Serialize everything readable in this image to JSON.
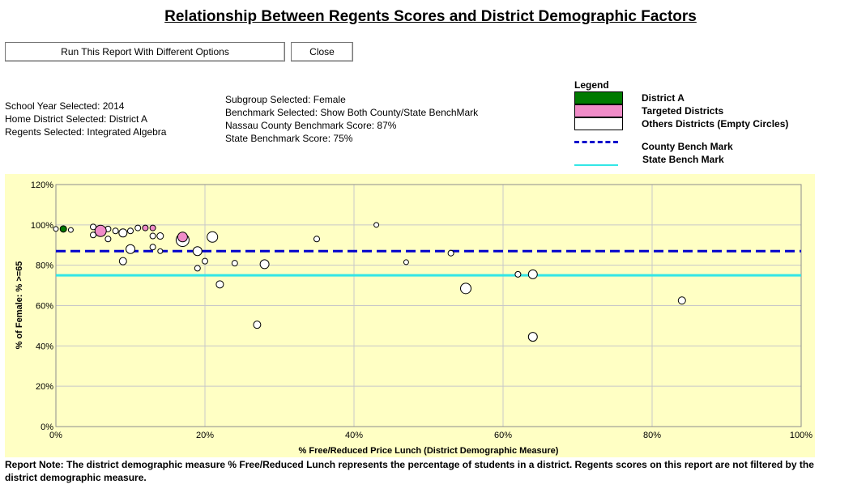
{
  "page": {
    "title": "Relationship Between Regents Scores and District Demographic Factors",
    "run_button": "Run This Report With Different Options",
    "close_button": "Close"
  },
  "info": {
    "school_year": "School Year Selected:  2014",
    "home_district": "Home District Selected: District A",
    "regents": "Regents Selected: Integrated Algebra",
    "subgroup": "Subgroup Selected: Female",
    "benchmark": "Benchmark Selected: Show Both County/State BenchMark",
    "county_score": "Nassau County Benchmark Score: 87%",
    "state_score": "State Benchmark Score: 75%"
  },
  "legend": {
    "title": "Legend",
    "district_a": "District A",
    "targeted": "Targeted Districts",
    "others": "Others Districts (Empty Circles)",
    "county": "County Bench Mark",
    "state": "State Bench Mark"
  },
  "colors": {
    "district_a": "#007a00",
    "targeted": "#f08cc8",
    "county_line": "#0000cc",
    "state_line": "#33e6e6",
    "plot_bg": "#ffffc4"
  },
  "chart_data": {
    "type": "scatter",
    "xlabel": "% Free/Reduced Price Lunch (District Demographic Measure)",
    "ylabel": "% of Female:   % >=65",
    "xlim": [
      0,
      100
    ],
    "ylim": [
      0,
      120
    ],
    "x_ticks": [
      "0%",
      "20%",
      "40%",
      "60%",
      "80%",
      "100%"
    ],
    "y_ticks": [
      "0%",
      "20%",
      "40%",
      "60%",
      "80%",
      "100%",
      "120%"
    ],
    "x_tick_values": [
      0,
      20,
      40,
      60,
      80,
      100
    ],
    "y_tick_values": [
      0,
      20,
      40,
      60,
      80,
      100,
      120
    ],
    "grid": true,
    "benchmarks": {
      "county": 87,
      "state": 75
    },
    "series": [
      {
        "name": "District A",
        "points": [
          {
            "x": 1,
            "y": 98,
            "size": 4
          }
        ]
      },
      {
        "name": "Targeted Districts",
        "points": [
          {
            "x": 6,
            "y": 97,
            "size": 7
          },
          {
            "x": 12,
            "y": 98.5,
            "size": 3.5
          },
          {
            "x": 13,
            "y": 98.5,
            "size": 3.5
          },
          {
            "x": 17,
            "y": 94,
            "size": 6
          }
        ]
      },
      {
        "name": "Others Districts (Empty Circles)",
        "points": [
          {
            "x": 0,
            "y": 98,
            "size": 3
          },
          {
            "x": 2,
            "y": 97.5,
            "size": 3
          },
          {
            "x": 5,
            "y": 99,
            "size": 3.5
          },
          {
            "x": 5,
            "y": 95,
            "size": 3.5
          },
          {
            "x": 6,
            "y": 98,
            "size": 3.5
          },
          {
            "x": 7,
            "y": 98,
            "size": 3.5
          },
          {
            "x": 7,
            "y": 93,
            "size": 3.5
          },
          {
            "x": 8,
            "y": 97,
            "size": 3.5
          },
          {
            "x": 9,
            "y": 96,
            "size": 5
          },
          {
            "x": 10,
            "y": 97,
            "size": 3.5
          },
          {
            "x": 11,
            "y": 98.5,
            "size": 3.5
          },
          {
            "x": 9,
            "y": 82,
            "size": 4.5
          },
          {
            "x": 10,
            "y": 88,
            "size": 5.5
          },
          {
            "x": 13,
            "y": 94.5,
            "size": 3.5
          },
          {
            "x": 14,
            "y": 94.5,
            "size": 4
          },
          {
            "x": 13,
            "y": 89,
            "size": 3.5
          },
          {
            "x": 14,
            "y": 87,
            "size": 3
          },
          {
            "x": 17,
            "y": 92.5,
            "size": 8
          },
          {
            "x": 19,
            "y": 87,
            "size": 5.5
          },
          {
            "x": 20,
            "y": 82,
            "size": 3.5
          },
          {
            "x": 19,
            "y": 78.5,
            "size": 3.5
          },
          {
            "x": 21,
            "y": 94,
            "size": 6.5
          },
          {
            "x": 22,
            "y": 70.5,
            "size": 4.5
          },
          {
            "x": 24,
            "y": 81,
            "size": 3.5
          },
          {
            "x": 28,
            "y": 80.5,
            "size": 5.5
          },
          {
            "x": 27,
            "y": 50.5,
            "size": 4.5
          },
          {
            "x": 35,
            "y": 93,
            "size": 3.5
          },
          {
            "x": 43,
            "y": 100,
            "size": 3
          },
          {
            "x": 47,
            "y": 81.5,
            "size": 3
          },
          {
            "x": 53,
            "y": 86,
            "size": 3.5
          },
          {
            "x": 55,
            "y": 68.5,
            "size": 6.5
          },
          {
            "x": 62,
            "y": 75.5,
            "size": 3.5
          },
          {
            "x": 64,
            "y": 75.5,
            "size": 5.5
          },
          {
            "x": 64,
            "y": 44.5,
            "size": 5.5
          },
          {
            "x": 84,
            "y": 62.5,
            "size": 4.5
          }
        ]
      }
    ]
  },
  "note": "Report Note:  The district demographic measure % Free/Reduced Lunch represents the percentage of students in a district. Regents scores on this report are not filtered by the district demographic measure."
}
